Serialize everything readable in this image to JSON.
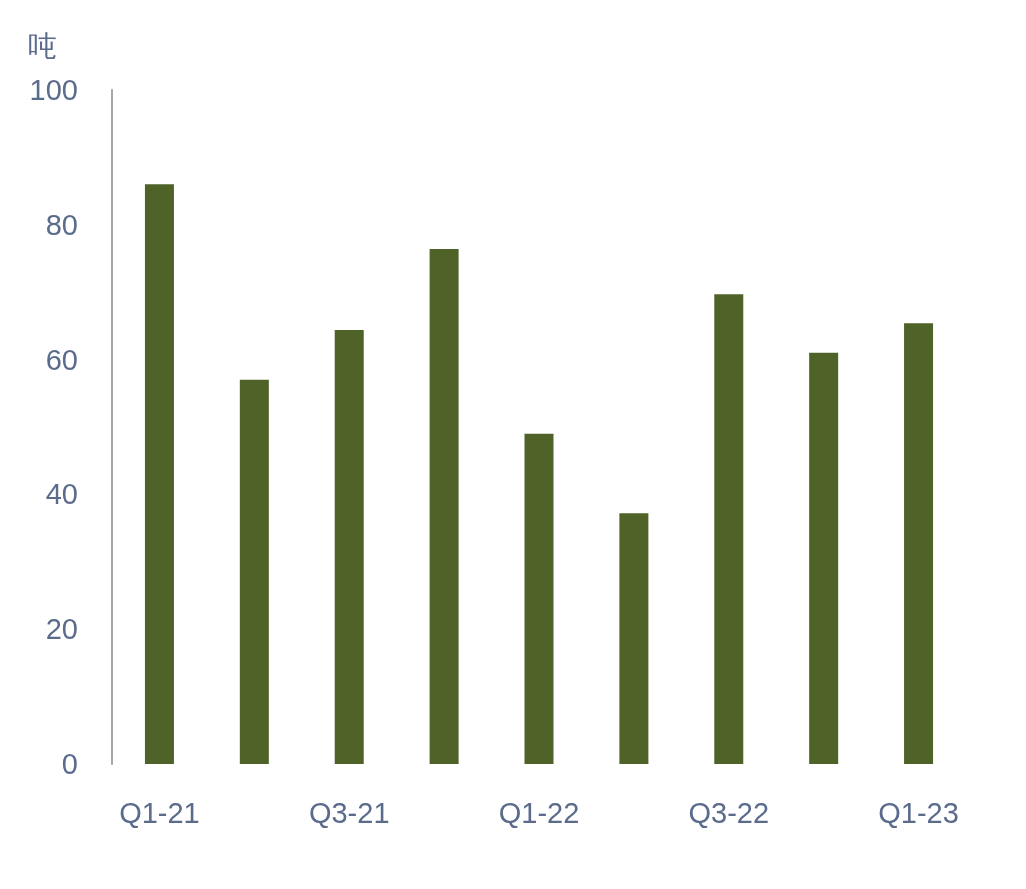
{
  "chart_data": {
    "type": "bar",
    "ylabel": "吨",
    "categories": [
      "Q1-21",
      null,
      "Q3-21",
      null,
      "Q1-22",
      null,
      "Q3-22",
      null,
      "Q1-23"
    ],
    "values": [
      86,
      57,
      64.4,
      76.4,
      49,
      37.2,
      69.7,
      61,
      65.4
    ],
    "color": "#4f6228",
    "ylim": [
      0,
      100
    ],
    "yticks": [
      0,
      20,
      40,
      60,
      80,
      100
    ],
    "grid": false
  }
}
